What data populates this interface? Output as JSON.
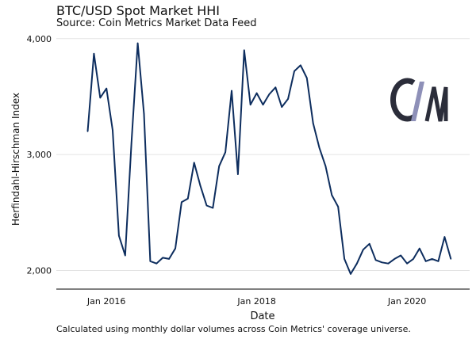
{
  "chart_data": {
    "type": "line",
    "title": "BTC/USD Spot Market HHI",
    "subtitle": "Source: Coin Metrics Market Data Feed",
    "xlabel": "Date",
    "ylabel": "Herfindahl-Hirschman Index",
    "footnote": "Calculated using monthly dollar volumes across Coin Metrics' coverage universe.",
    "x_ticks": [
      {
        "date": "2016-01",
        "label": "Jan 2016"
      },
      {
        "date": "2018-01",
        "label": "Jan 2018"
      },
      {
        "date": "2020-01",
        "label": "Jan 2020"
      }
    ],
    "y_ticks": [
      {
        "value": 2000,
        "label": "2,000"
      },
      {
        "value": 3000,
        "label": "3,000"
      },
      {
        "value": 4000,
        "label": "4,000"
      }
    ],
    "xlim": [
      "2015-05",
      "2020-11"
    ],
    "ylim": [
      1860,
      4060
    ],
    "grid": "horizontal",
    "series_color": "#0d2d5e",
    "x": [
      "2015-10",
      "2015-11",
      "2015-12",
      "2016-01",
      "2016-02",
      "2016-03",
      "2016-04",
      "2016-05",
      "2016-06",
      "2016-07",
      "2016-08",
      "2016-09",
      "2016-10",
      "2016-11",
      "2016-12",
      "2017-01",
      "2017-02",
      "2017-03",
      "2017-04",
      "2017-05",
      "2017-06",
      "2017-07",
      "2017-08",
      "2017-09",
      "2017-10",
      "2017-11",
      "2017-12",
      "2018-01",
      "2018-02",
      "2018-03",
      "2018-04",
      "2018-05",
      "2018-06",
      "2018-07",
      "2018-08",
      "2018-09",
      "2018-10",
      "2018-11",
      "2018-12",
      "2019-01",
      "2019-02",
      "2019-03",
      "2019-04",
      "2019-05",
      "2019-06",
      "2019-07",
      "2019-08",
      "2019-09",
      "2019-10",
      "2019-11",
      "2019-12",
      "2020-01",
      "2020-02",
      "2020-03",
      "2020-04",
      "2020-05",
      "2020-06",
      "2020-07",
      "2020-08"
    ],
    "values": [
      3200,
      3870,
      3490,
      3570,
      3210,
      2300,
      2130,
      3100,
      3960,
      3350,
      2080,
      2060,
      2110,
      2100,
      2190,
      2590,
      2620,
      2930,
      2730,
      2560,
      2540,
      2900,
      3020,
      3550,
      2830,
      3900,
      3430,
      3530,
      3430,
      3520,
      3580,
      3410,
      3480,
      3720,
      3770,
      3660,
      3270,
      3060,
      2900,
      2650,
      2550,
      2100,
      1970,
      2060,
      2180,
      2230,
      2090,
      2070,
      2060,
      2100,
      2130,
      2060,
      2100,
      2190,
      2080,
      2100,
      2080,
      2290,
      2100
    ]
  },
  "logo": {
    "name": "Coin Metrics",
    "colors": [
      "#2b2d3a",
      "#8e90b8"
    ]
  }
}
